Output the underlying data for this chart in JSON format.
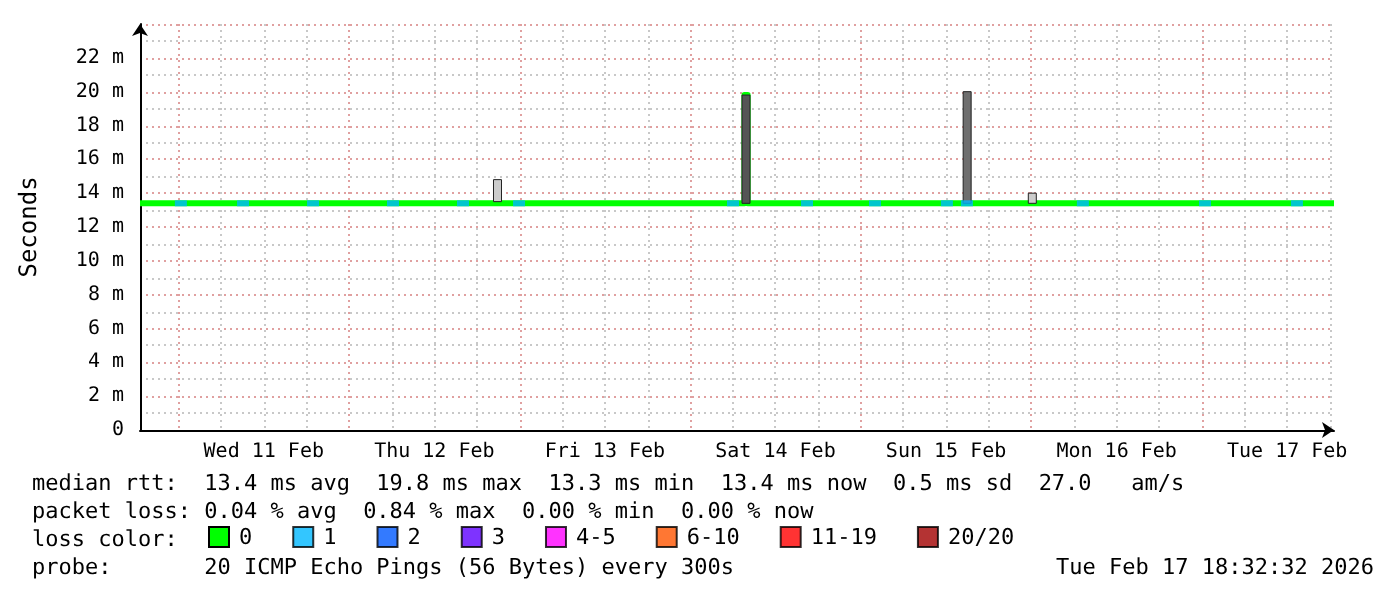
{
  "chart_data": {
    "type": "step",
    "ylabel": "Seconds",
    "legend_title": "loss color:",
    "xlim": [
      "2026-02-10T18:35",
      "2026-02-17T18:35"
    ],
    "xticks": [
      {
        "value": "2026-02-11T12:00",
        "label": "Wed 11 Feb"
      },
      {
        "value": "2026-02-12T12:00",
        "label": "Thu 12 Feb"
      },
      {
        "value": "2026-02-13T12:00",
        "label": "Fri 13 Feb"
      },
      {
        "value": "2026-02-14T12:00",
        "label": "Sat 14 Feb"
      },
      {
        "value": "2026-02-15T12:00",
        "label": "Sun 15 Feb"
      },
      {
        "value": "2026-02-16T12:00",
        "label": "Mon 16 Feb"
      },
      {
        "value": "2026-02-17T12:00",
        "label": "Tue 17 Feb"
      }
    ],
    "ylim": [
      0,
      24
    ],
    "yticks": [
      0,
      {
        "value": 2,
        "label": "2 m"
      },
      {
        "value": 4,
        "label": "4 m"
      },
      {
        "value": 6,
        "label": "6 m"
      },
      {
        "value": 8,
        "label": "8 m"
      },
      {
        "value": 10,
        "label": "10 m"
      },
      {
        "value": 12,
        "label": "12 m"
      },
      {
        "value": 14,
        "label": "14 m"
      },
      {
        "value": 16,
        "label": "16 m"
      },
      {
        "value": 18,
        "label": "18 m"
      },
      {
        "value": 20,
        "label": "20 m"
      },
      {
        "value": 22,
        "label": "22 m"
      }
    ],
    "grid": true,
    "legend": "bottom left",
    "series": [
      {
        "type": "bar",
        "x": [
          "2026-02-12T20:53",
          "2026-02-14T07:51",
          "2026-02-15T14:58",
          "2026-02-16T00:08"
        ],
        "base": [
          13.5,
          13.4,
          13.4,
          13.4
        ],
        "values": [
          1.3,
          6.4,
          6.6,
          0.6
        ],
        "colors": [
          "#cccccc",
          "#555555",
          "#6e6e6e",
          "#cccccc"
        ]
      },
      {
        "name": "0",
        "color": "#00ff00",
        "x": [
          "2026-02-10T18:35",
          "2026-02-14T07:38",
          "2026-02-14T08:05",
          "2026-02-17T18:35"
        ],
        "values": [
          13.4,
          19.8,
          13.4,
          13.4
        ]
      },
      {
        "name": "1",
        "type": "scatter",
        "marker": "square",
        "color": "#00b8ff",
        "x": [
          "2026-02-11T00:20",
          "2026-02-11T09:05",
          "2026-02-11T18:56",
          "2026-02-12T06:11",
          "2026-02-12T16:02",
          "2026-02-12T23:55",
          "2026-02-14T06:01",
          "2026-02-14T16:26",
          "2026-02-15T02:00",
          "2026-02-15T12:07",
          "2026-02-15T14:56",
          "2026-02-16T07:15",
          "2026-02-17T00:26",
          "2026-02-17T13:22"
        ],
        "values": [
          13.4,
          13.4,
          13.4,
          13.4,
          13.4,
          13.4,
          13.4,
          13.4,
          13.4,
          13.4,
          13.4,
          13.4,
          13.4,
          13.4
        ]
      },
      {
        "name": "2",
        "type": "scatter",
        "marker": "square",
        "color": "#0059ff"
      },
      {
        "name": "3",
        "type": "scatter",
        "marker": "square",
        "color": "#5e00ff"
      },
      {
        "name": "4-5",
        "type": "scatter",
        "marker": "square",
        "color": "#ff00ff"
      },
      {
        "name": "6-10",
        "type": "scatter",
        "marker": "square",
        "color": "#ff5500"
      },
      {
        "name": "11-19",
        "type": "scatter",
        "marker": "square",
        "color": "#ff0000"
      },
      {
        "name": "20/20",
        "type": "scatter",
        "marker": "square",
        "color": "#a10000"
      }
    ],
    "annotations": [
      "median rtt:  13.4 ms avg  19.8 ms max  13.3 ms min  13.4 ms now  0.5 ms sd  27.0   am/s",
      "packet loss: 0.04 % avg  0.84 % max  0.00 % min  0.00 % now",
      "probe:       20 ICMP Echo Pings (56 Bytes) every 300s",
      "Tue Feb 17 18:32:32 2026"
    ]
  }
}
